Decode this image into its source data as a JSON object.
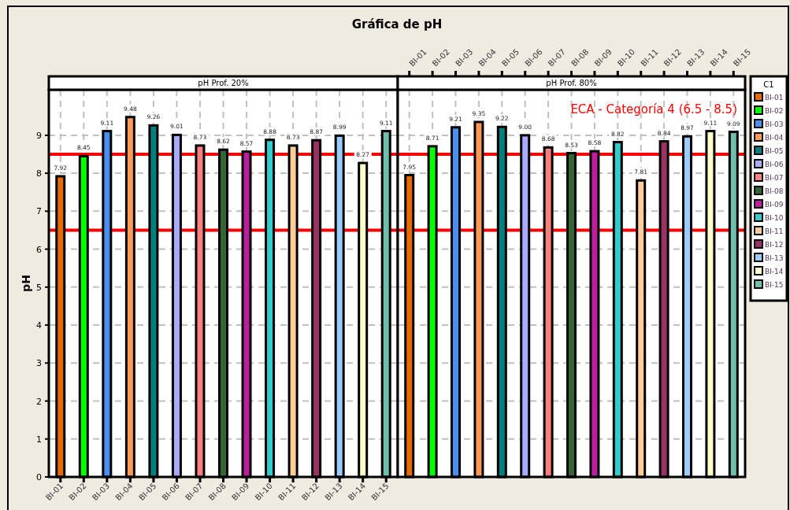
{
  "chart_data": [
    {
      "type": "bar",
      "title": "Gráfica de pH",
      "subtitle": "pH Prof. 20%",
      "ylabel": "pH",
      "categories": [
        "BI-01",
        "BI-02",
        "BI-03",
        "BI-04",
        "BI-05",
        "BI-06",
        "BI-07",
        "BI-08",
        "BI-09",
        "BI-10",
        "BI-11",
        "BI-12",
        "BI-13",
        "BI-14",
        "BI-15"
      ],
      "values": [
        7.92,
        8.45,
        9.11,
        9.48,
        9.26,
        9.01,
        8.73,
        8.62,
        8.57,
        8.88,
        8.73,
        8.87,
        8.99,
        8.27,
        9.11
      ],
      "colors": [
        "#e66a00",
        "#00ff00",
        "#4a8ff0",
        "#ff9955",
        "#007f7f",
        "#aaaaff",
        "#ff7f7f",
        "#336633",
        "#bb1fa0",
        "#33cccc",
        "#ffcc99",
        "#993366",
        "#99ccff",
        "#ffffcc",
        "#6fbfaf"
      ],
      "value_labels": [
        "7.92",
        "8.45",
        "9.11",
        "9.48",
        "9.26",
        "9.01",
        "8.73",
        "8.62",
        "8.57",
        "8.88",
        "8.73",
        "8.87",
        "8.99",
        "8.27",
        "9.11"
      ],
      "ylim": [
        0,
        10.2
      ],
      "yticks": [
        0,
        1,
        2,
        3,
        4,
        5,
        6,
        7,
        8,
        9
      ],
      "grid": true,
      "ref_lines": [
        {
          "axis": "y",
          "value": 6.5,
          "color": "#ff0000"
        },
        {
          "axis": "y",
          "value": 8.5,
          "color": "#ff0000"
        }
      ]
    },
    {
      "type": "bar",
      "subtitle": "pH Prof. 80%",
      "legend_title": "C1",
      "tick_labels": "x",
      "categories": [
        "BI-01",
        "BI-02",
        "BI-03",
        "BI-04",
        "BI-05",
        "BI-06",
        "BI-07",
        "BI-08",
        "BI-09",
        "BI-10",
        "BI-11",
        "BI-12",
        "BI-13",
        "BI-14",
        "BI-15"
      ],
      "values": [
        7.95,
        8.71,
        9.21,
        9.35,
        9.22,
        9.0,
        8.68,
        8.53,
        8.58,
        8.82,
        7.81,
        8.84,
        8.97,
        9.11,
        9.09
      ],
      "colors": [
        "#e66a00",
        "#00ff00",
        "#4a8ff0",
        "#ff9955",
        "#007f7f",
        "#aaaaff",
        "#ff7f7f",
        "#336633",
        "#bb1fa0",
        "#33cccc",
        "#ffcc99",
        "#993366",
        "#99ccff",
        "#ffffcc",
        "#6fbfaf"
      ],
      "value_labels": [
        "7.95",
        "8.71",
        "9.21",
        "9.35",
        "9.22",
        "9.00",
        "8.68",
        "8.53",
        "8.58",
        "8.82",
        "7.81",
        "8.84",
        "8.97",
        "9.11",
        "9.09"
      ],
      "ylim": [
        0,
        10.2
      ],
      "yticks": [
        0,
        1,
        2,
        3,
        4,
        5,
        6,
        7,
        8,
        9
      ],
      "grid": true,
      "ref_lines": [
        {
          "axis": "y",
          "value": 6.5,
          "color": "#ff0000"
        },
        {
          "axis": "y",
          "value": 8.5,
          "color": "#ff0000"
        }
      ],
      "annotations": [
        "ECA - Categoría 4 (6.5 - 8.5)"
      ]
    }
  ]
}
